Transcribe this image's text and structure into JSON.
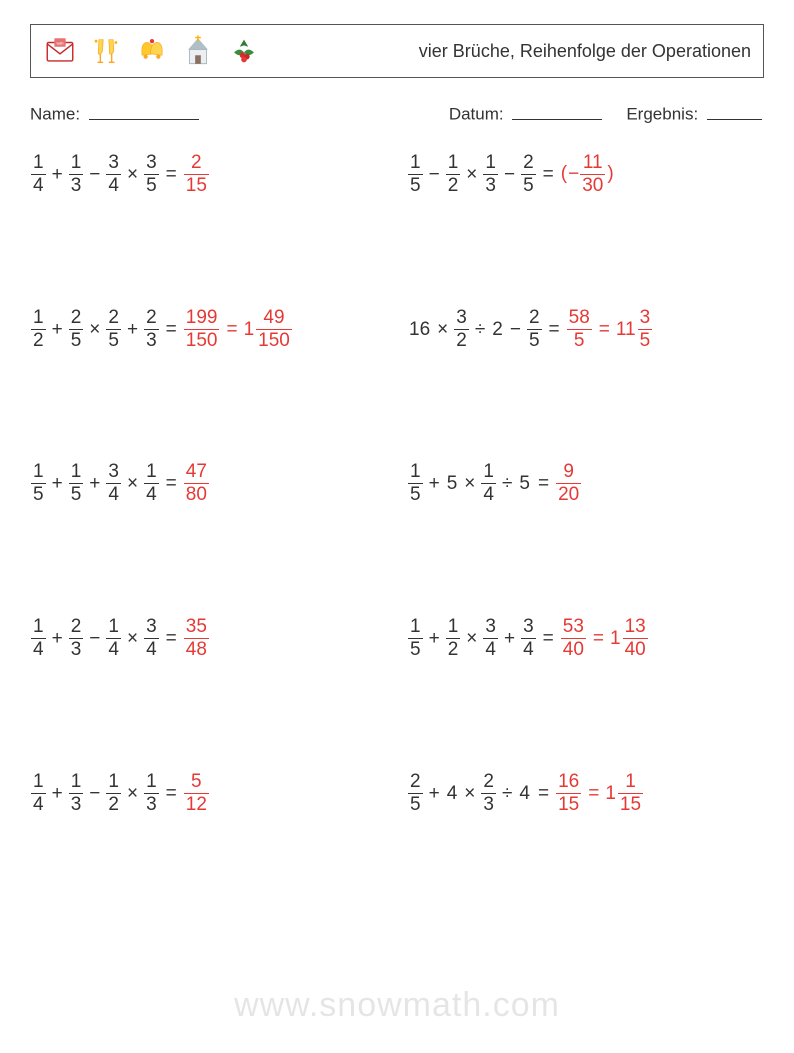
{
  "header": {
    "title": "vier Brüche, Reihenfolge der Operationen",
    "icons": [
      "wish-letter-icon",
      "champagne-glasses-icon",
      "bells-icon",
      "church-icon",
      "holly-icon"
    ]
  },
  "meta": {
    "name_label": "Name:",
    "date_label": "Datum:",
    "result_label": "Ergebnis:"
  },
  "answer_color": "#e53935",
  "text_color": "#333333",
  "watermark": "www.snowmath.com",
  "problems": [
    {
      "expr": [
        {
          "f": [
            1,
            4
          ]
        },
        {
          "op": "+"
        },
        {
          "f": [
            1,
            3
          ]
        },
        {
          "op": "−"
        },
        {
          "f": [
            3,
            4
          ]
        },
        {
          "op": "×"
        },
        {
          "f": [
            3,
            5
          ]
        }
      ],
      "answers": [
        {
          "f": [
            2,
            15
          ]
        }
      ]
    },
    {
      "expr": [
        {
          "f": [
            1,
            5
          ]
        },
        {
          "op": "−"
        },
        {
          "f": [
            1,
            2
          ]
        },
        {
          "op": "×"
        },
        {
          "f": [
            1,
            3
          ]
        },
        {
          "op": "−"
        },
        {
          "f": [
            2,
            5
          ]
        }
      ],
      "answers": [
        {
          "paren": true,
          "neg": true,
          "f": [
            11,
            30
          ]
        }
      ]
    },
    {
      "expr": [
        {
          "f": [
            1,
            2
          ]
        },
        {
          "op": "+"
        },
        {
          "f": [
            2,
            5
          ]
        },
        {
          "op": "×"
        },
        {
          "f": [
            2,
            5
          ]
        },
        {
          "op": "+"
        },
        {
          "f": [
            2,
            3
          ]
        }
      ],
      "answers": [
        {
          "f": [
            199,
            150
          ]
        },
        {
          "mixed": [
            1,
            49,
            150
          ]
        }
      ]
    },
    {
      "expr": [
        {
          "n": 16
        },
        {
          "op": "×"
        },
        {
          "f": [
            3,
            2
          ]
        },
        {
          "op": "÷"
        },
        {
          "n": 2
        },
        {
          "op": "−"
        },
        {
          "f": [
            2,
            5
          ]
        }
      ],
      "answers": [
        {
          "f": [
            58,
            5
          ]
        },
        {
          "mixed": [
            11,
            3,
            5
          ]
        }
      ]
    },
    {
      "expr": [
        {
          "f": [
            1,
            5
          ]
        },
        {
          "op": "+"
        },
        {
          "f": [
            1,
            5
          ]
        },
        {
          "op": "+"
        },
        {
          "f": [
            3,
            4
          ]
        },
        {
          "op": "×"
        },
        {
          "f": [
            1,
            4
          ]
        }
      ],
      "answers": [
        {
          "f": [
            47,
            80
          ]
        }
      ]
    },
    {
      "expr": [
        {
          "f": [
            1,
            5
          ]
        },
        {
          "op": "+"
        },
        {
          "n": 5
        },
        {
          "op": "×"
        },
        {
          "f": [
            1,
            4
          ]
        },
        {
          "op": "÷"
        },
        {
          "n": 5
        }
      ],
      "answers": [
        {
          "f": [
            9,
            20
          ]
        }
      ]
    },
    {
      "expr": [
        {
          "f": [
            1,
            4
          ]
        },
        {
          "op": "+"
        },
        {
          "f": [
            2,
            3
          ]
        },
        {
          "op": "−"
        },
        {
          "f": [
            1,
            4
          ]
        },
        {
          "op": "×"
        },
        {
          "f": [
            3,
            4
          ]
        }
      ],
      "answers": [
        {
          "f": [
            35,
            48
          ]
        }
      ]
    },
    {
      "expr": [
        {
          "f": [
            1,
            5
          ]
        },
        {
          "op": "+"
        },
        {
          "f": [
            1,
            2
          ]
        },
        {
          "op": "×"
        },
        {
          "f": [
            3,
            4
          ]
        },
        {
          "op": "+"
        },
        {
          "f": [
            3,
            4
          ]
        }
      ],
      "answers": [
        {
          "f": [
            53,
            40
          ]
        },
        {
          "mixed": [
            1,
            13,
            40
          ]
        }
      ]
    },
    {
      "expr": [
        {
          "f": [
            1,
            4
          ]
        },
        {
          "op": "+"
        },
        {
          "f": [
            1,
            3
          ]
        },
        {
          "op": "−"
        },
        {
          "f": [
            1,
            2
          ]
        },
        {
          "op": "×"
        },
        {
          "f": [
            1,
            3
          ]
        }
      ],
      "answers": [
        {
          "f": [
            5,
            12
          ]
        }
      ]
    },
    {
      "expr": [
        {
          "f": [
            2,
            5
          ]
        },
        {
          "op": "+"
        },
        {
          "n": 4
        },
        {
          "op": "×"
        },
        {
          "f": [
            2,
            3
          ]
        },
        {
          "op": "÷"
        },
        {
          "n": 4
        }
      ],
      "answers": [
        {
          "f": [
            16,
            15
          ]
        },
        {
          "mixed": [
            1,
            1,
            15
          ]
        }
      ]
    }
  ]
}
